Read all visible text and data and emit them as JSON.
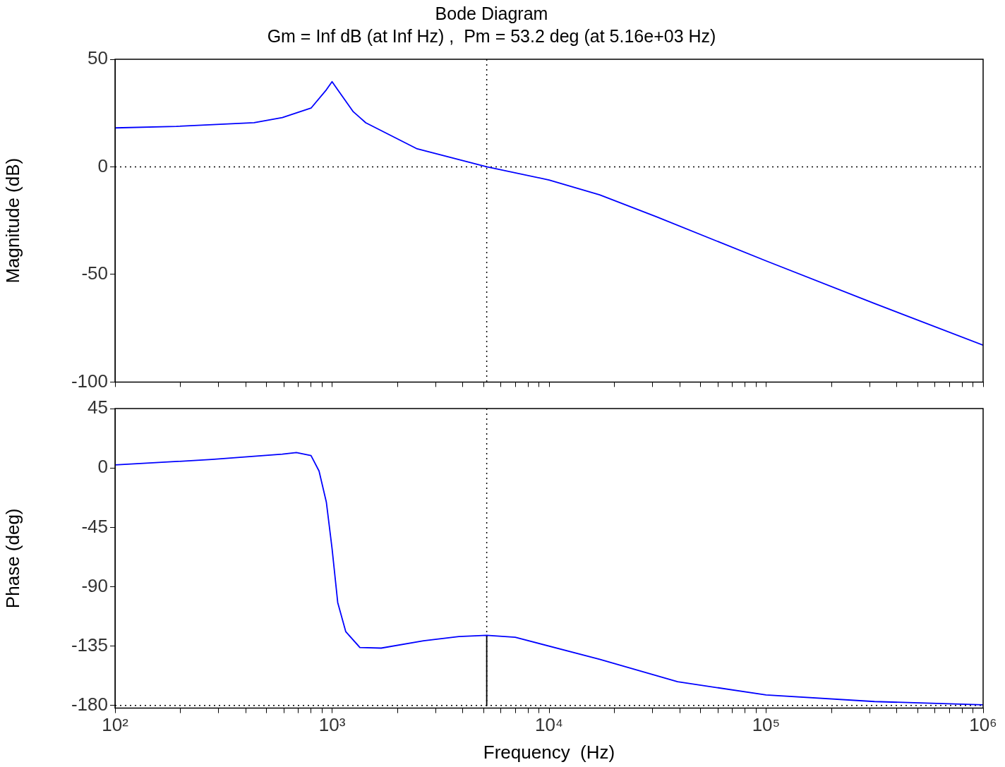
{
  "chart_data": [
    {
      "type": "line",
      "title": "Bode Diagram",
      "subtitle": "Gm = Inf dB (at Inf Hz) ,  Pm = 53.2 deg (at 5.16e+03 Hz)",
      "ylabel": "Magnitude (dB)",
      "log": "x",
      "tick_labels": "y",
      "xlim": [
        100,
        1000000
      ],
      "xticks": [
        100,
        {
          "value": 200,
          "label": null
        },
        {
          "value": 300,
          "label": null
        },
        {
          "value": 400,
          "label": null
        },
        {
          "value": 500,
          "label": null
        },
        {
          "value": 600,
          "label": null
        },
        {
          "value": 700,
          "label": null
        },
        {
          "value": 800,
          "label": null
        },
        {
          "value": 900,
          "label": null
        },
        1000,
        {
          "value": 2000,
          "label": null
        },
        {
          "value": 3000,
          "label": null
        },
        {
          "value": 4000,
          "label": null
        },
        {
          "value": 5000,
          "label": null
        },
        {
          "value": 6000,
          "label": null
        },
        {
          "value": 7000,
          "label": null
        },
        {
          "value": 8000,
          "label": null
        },
        {
          "value": 9000,
          "label": null
        },
        10000,
        {
          "value": 20000,
          "label": null
        },
        {
          "value": 30000,
          "label": null
        },
        {
          "value": 40000,
          "label": null
        },
        {
          "value": 50000,
          "label": null
        },
        {
          "value": 60000,
          "label": null
        },
        {
          "value": 70000,
          "label": null
        },
        {
          "value": 80000,
          "label": null
        },
        {
          "value": 90000,
          "label": null
        },
        100000,
        {
          "value": 200000,
          "label": null
        },
        {
          "value": 300000,
          "label": null
        },
        {
          "value": 400000,
          "label": null
        },
        {
          "value": 500000,
          "label": null
        },
        {
          "value": 600000,
          "label": null
        },
        {
          "value": 700000,
          "label": null
        },
        {
          "value": 800000,
          "label": null
        },
        {
          "value": 900000,
          "label": null
        },
        1000000
      ],
      "ylim": [
        -100,
        50
      ],
      "yticks": [
        -100,
        -50,
        0,
        50
      ],
      "series": [
        {
          "color": "#0000ff",
          "x": [
            100,
            192,
            437,
            590,
            800,
            941,
            1000,
            1062,
            1253,
            1430,
            2450,
            5160,
            10000,
            17100,
            31200,
            100000,
            316000,
            1000000
          ],
          "values": [
            18.1,
            18.8,
            20.5,
            22.9,
            27.3,
            35.8,
            39.6,
            35.8,
            25.6,
            20.5,
            8.5,
            0,
            -6.1,
            -13,
            -23.2,
            -43.7,
            -63.5,
            -82.9
          ]
        }
      ],
      "ref_lines": [
        {
          "axis": "y",
          "value": 0,
          "color": "#000000",
          "line_style": "dotted"
        },
        {
          "axis": "x",
          "value": 5160,
          "color": "#000000",
          "line_style": "dotted"
        }
      ]
    },
    {
      "type": "line",
      "xlabel": "Frequency  (Hz)",
      "ylabel": "Phase (deg)",
      "log": "x",
      "xlim": [
        100,
        1000000
      ],
      "xticks": [
        {
          "value": 100,
          "label": "10²"
        },
        {
          "value": 200,
          "label": null
        },
        {
          "value": 300,
          "label": null
        },
        {
          "value": 400,
          "label": null
        },
        {
          "value": 500,
          "label": null
        },
        {
          "value": 600,
          "label": null
        },
        {
          "value": 700,
          "label": null
        },
        {
          "value": 800,
          "label": null
        },
        {
          "value": 900,
          "label": null
        },
        {
          "value": 1000,
          "label": "10³"
        },
        {
          "value": 2000,
          "label": null
        },
        {
          "value": 3000,
          "label": null
        },
        {
          "value": 4000,
          "label": null
        },
        {
          "value": 5000,
          "label": null
        },
        {
          "value": 6000,
          "label": null
        },
        {
          "value": 7000,
          "label": null
        },
        {
          "value": 8000,
          "label": null
        },
        {
          "value": 9000,
          "label": null
        },
        {
          "value": 10000,
          "label": "10⁴"
        },
        {
          "value": 20000,
          "label": null
        },
        {
          "value": 30000,
          "label": null
        },
        {
          "value": 40000,
          "label": null
        },
        {
          "value": 50000,
          "label": null
        },
        {
          "value": 60000,
          "label": null
        },
        {
          "value": 70000,
          "label": null
        },
        {
          "value": 80000,
          "label": null
        },
        {
          "value": 90000,
          "label": null
        },
        {
          "value": 100000,
          "label": "10⁵"
        },
        {
          "value": 200000,
          "label": null
        },
        {
          "value": 300000,
          "label": null
        },
        {
          "value": 400000,
          "label": null
        },
        {
          "value": 500000,
          "label": null
        },
        {
          "value": 600000,
          "label": null
        },
        {
          "value": 700000,
          "label": null
        },
        {
          "value": 800000,
          "label": null
        },
        {
          "value": 900000,
          "label": null
        },
        {
          "value": 1000000,
          "label": "10⁶"
        }
      ],
      "ylim": [
        -182,
        45
      ],
      "yticks": [
        -180,
        -135,
        -90,
        -45,
        0,
        45
      ],
      "series": [
        {
          "color": "#0000ff",
          "x": [
            100,
            279,
            590,
            685,
            800,
            871,
            941,
            1000,
            1062,
            1156,
            1343,
            1684,
            2640,
            3840,
            5160,
            6980,
            17100,
            39100,
            100000,
            316000,
            1000000
          ],
          "values": [
            2.3,
            6.4,
            10.5,
            11.7,
            9.4,
            -2.3,
            -25.8,
            -61,
            -102,
            -124,
            -136,
            -136.5,
            -131,
            -127.7,
            -126.8,
            -128.3,
            -145,
            -162,
            -172,
            -177,
            -179.5
          ]
        },
        {
          "color": "#000000",
          "x": [
            5160,
            5160
          ],
          "values": [
            -180,
            -126.8
          ]
        }
      ],
      "ref_lines": [
        {
          "axis": "x",
          "value": 5160,
          "color": "#000000",
          "line_style": "dotted"
        },
        {
          "axis": "y",
          "value": -180,
          "color": "#000000",
          "line_style": "dotted"
        }
      ]
    }
  ]
}
